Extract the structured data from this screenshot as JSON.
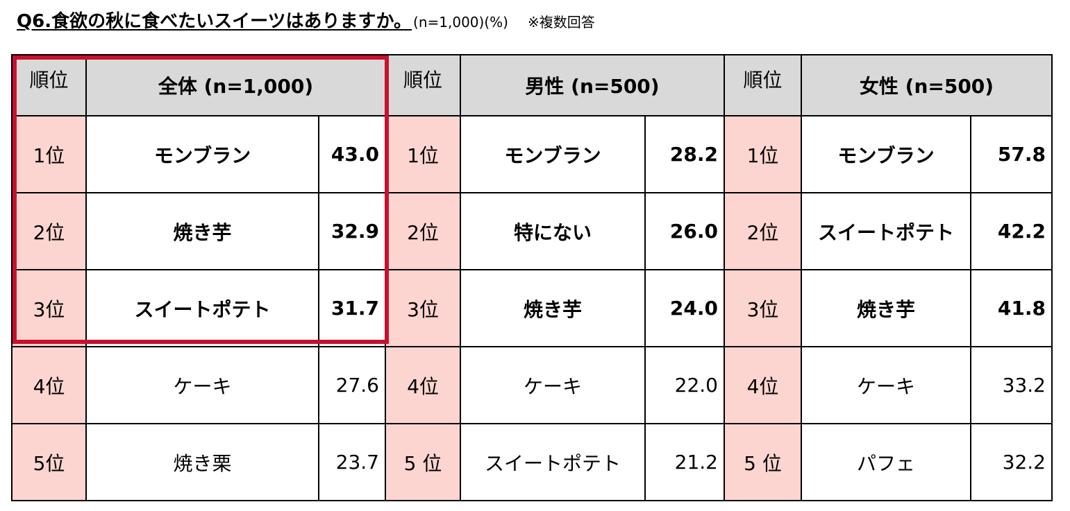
{
  "title": {
    "question": "Q6.食欲の秋に食べたいスイーツはありますか。",
    "sample": "(n=1,000)(%)",
    "note": "※複数回答"
  },
  "rank_header": "順位",
  "groups": [
    {
      "header": "全体 (n=1,000)",
      "rows": [
        {
          "rank": "1位",
          "item": "モンブラン",
          "value": "43.0"
        },
        {
          "rank": "2位",
          "item": "焼き芋",
          "value": "32.9"
        },
        {
          "rank": "3位",
          "item": "スイートポテト",
          "value": "31.7"
        },
        {
          "rank": "4位",
          "item": "ケーキ",
          "value": "27.6"
        },
        {
          "rank": "5位",
          "item": "焼き栗",
          "value": "23.7"
        }
      ]
    },
    {
      "header": "男性 (n=500)",
      "rows": [
        {
          "rank": "1位",
          "item": "モンブラン",
          "value": "28.2"
        },
        {
          "rank": "2位",
          "item": "特にない",
          "value": "26.0"
        },
        {
          "rank": "3位",
          "item": "焼き芋",
          "value": "24.0"
        },
        {
          "rank": "4位",
          "item": "ケーキ",
          "value": "22.0"
        },
        {
          "rank": "5 位",
          "item": "スイートポテト",
          "value": "21.2"
        }
      ]
    },
    {
      "header": "女性 (n=500)",
      "rows": [
        {
          "rank": "1位",
          "item": "モンブラン",
          "value": "57.8"
        },
        {
          "rank": "2位",
          "item": "スイートポテト",
          "value": "42.2"
        },
        {
          "rank": "3位",
          "item": "焼き芋",
          "value": "41.8"
        },
        {
          "rank": "4位",
          "item": "ケーキ",
          "value": "33.2"
        },
        {
          "rank": "5 位",
          "item": "パフェ",
          "value": "32.2"
        }
      ]
    }
  ],
  "colors": {
    "header_bg": "#d9d9d9",
    "rank_bg": "#fcd5d0",
    "highlight": "#c8102e"
  }
}
